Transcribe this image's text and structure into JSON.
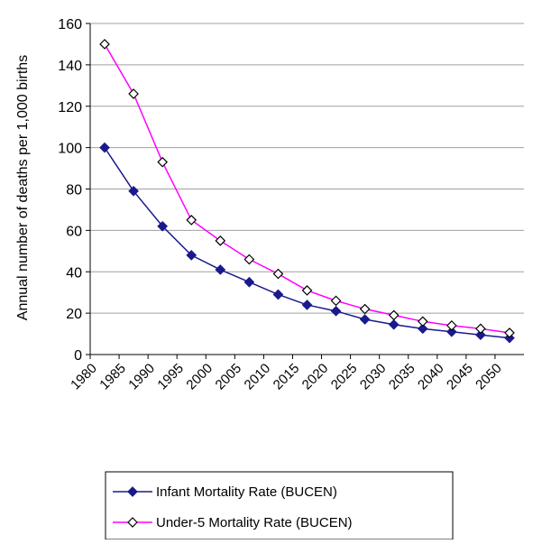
{
  "chart_data": {
    "type": "line",
    "ylabel": "Annual number of deaths per 1,000 births",
    "xlabel": "",
    "x_tick_labels": [
      "1980",
      "1985",
      "1990",
      "1995",
      "2000",
      "2005",
      "2010",
      "2015",
      "2020",
      "2025",
      "2030",
      "2035",
      "2040",
      "2045",
      "2050"
    ],
    "y_tick_labels": [
      "0",
      "20",
      "40",
      "60",
      "80",
      "100",
      "120",
      "140",
      "160"
    ],
    "ylim": [
      0,
      160
    ],
    "grid": "horizontal",
    "legend_position": "bottom",
    "x": [
      1982.5,
      1987.5,
      1992.5,
      1997.5,
      2002.5,
      2007.5,
      2012.5,
      2017.5,
      2022.5,
      2027.5,
      2032.5,
      2037.5,
      2042.5,
      2047.5,
      2052.5
    ],
    "series": [
      {
        "name": "Infant Mortality Rate (BUCEN)",
        "color": "#1a1a8c",
        "marker": "filled-diamond",
        "values": [
          100,
          79,
          62,
          48,
          41,
          35,
          29,
          24,
          21,
          17,
          14.5,
          12.5,
          11,
          9.5,
          8
        ]
      },
      {
        "name": "Under-5 Mortality Rate (BUCEN)",
        "color": "#ff00ff",
        "marker": "open-diamond",
        "values": [
          150,
          126,
          93,
          65,
          55,
          46,
          39,
          31,
          26,
          22,
          19,
          16,
          14,
          12.5,
          10.5
        ]
      }
    ]
  }
}
